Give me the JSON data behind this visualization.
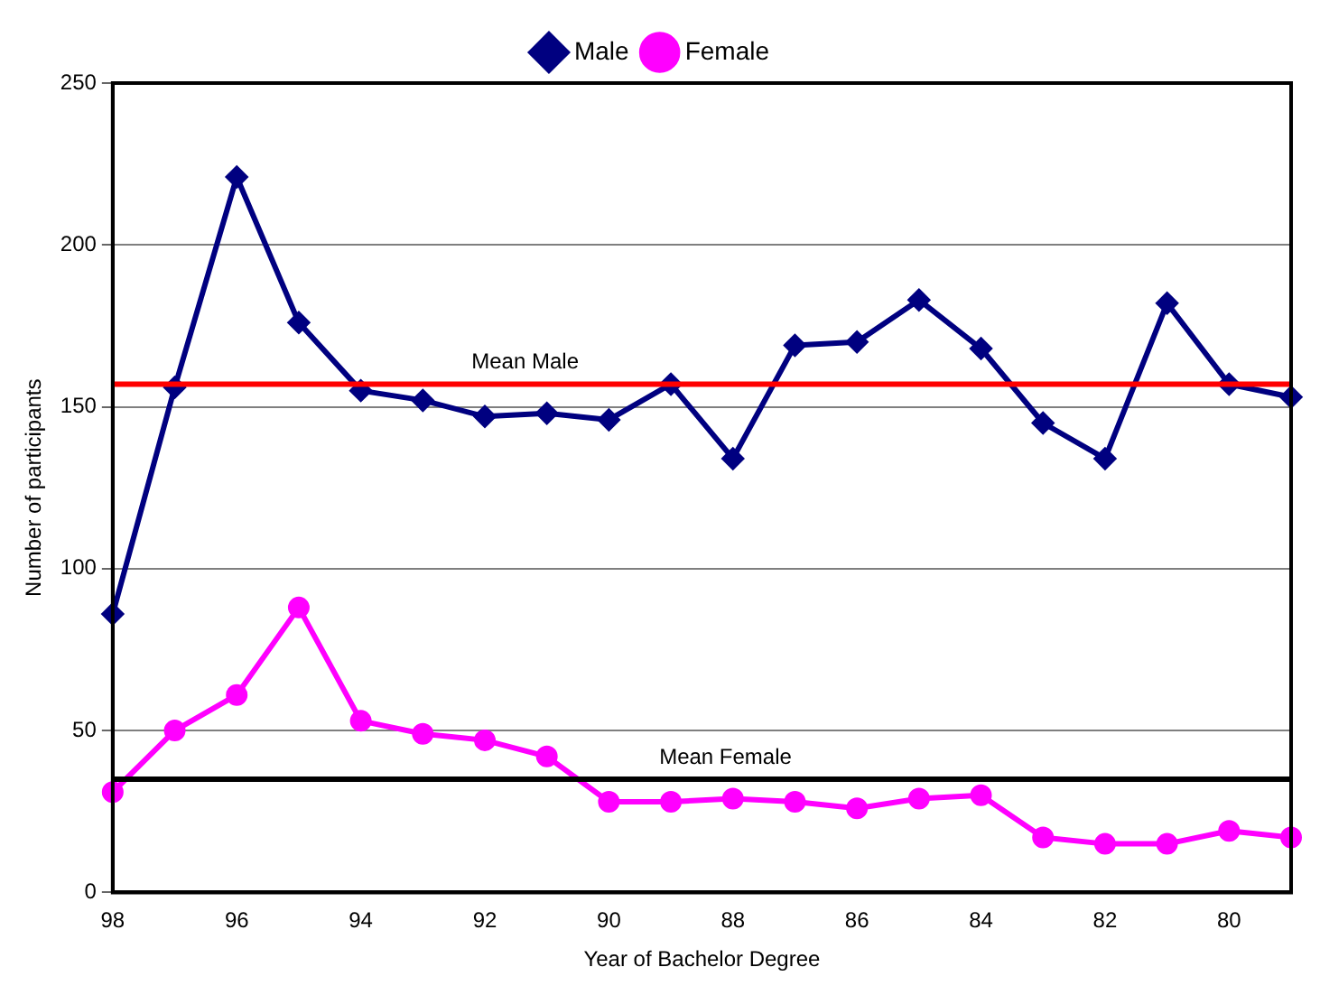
{
  "chart_data": {
    "type": "line",
    "xlabel": "Year of Bachelor Degree",
    "ylabel": "Number of participants",
    "categories": [
      "98",
      null,
      "96",
      null,
      "94",
      null,
      "92",
      null,
      "90",
      null,
      "88",
      null,
      "86",
      null,
      "84",
      null,
      "82",
      null,
      "80",
      null
    ],
    "series": [
      {
        "name": "Male",
        "color": "#000080",
        "marker": "diamond",
        "values": [
          86,
          156,
          221,
          176,
          155,
          152,
          147,
          148,
          146,
          157,
          134,
          169,
          170,
          183,
          168,
          145,
          134,
          182,
          157,
          153
        ]
      },
      {
        "name": "Female",
        "color": "#ff00ff",
        "marker": "circle",
        "values": [
          31,
          50,
          61,
          88,
          53,
          49,
          47,
          42,
          28,
          28,
          29,
          28,
          26,
          29,
          30,
          17,
          15,
          15,
          19,
          17
        ]
      }
    ],
    "ylim": [
      0,
      250
    ],
    "yticks": [
      0,
      50,
      100,
      150,
      200,
      250
    ],
    "grid": "y",
    "legend": "top",
    "line_style": "solid",
    "ref_lines": [
      {
        "axis": "y",
        "value": 157,
        "label": "Mean Male",
        "color": "#ff0000"
      },
      {
        "axis": "y",
        "value": 35,
        "label": "Mean Female",
        "color": "#000000"
      }
    ]
  }
}
